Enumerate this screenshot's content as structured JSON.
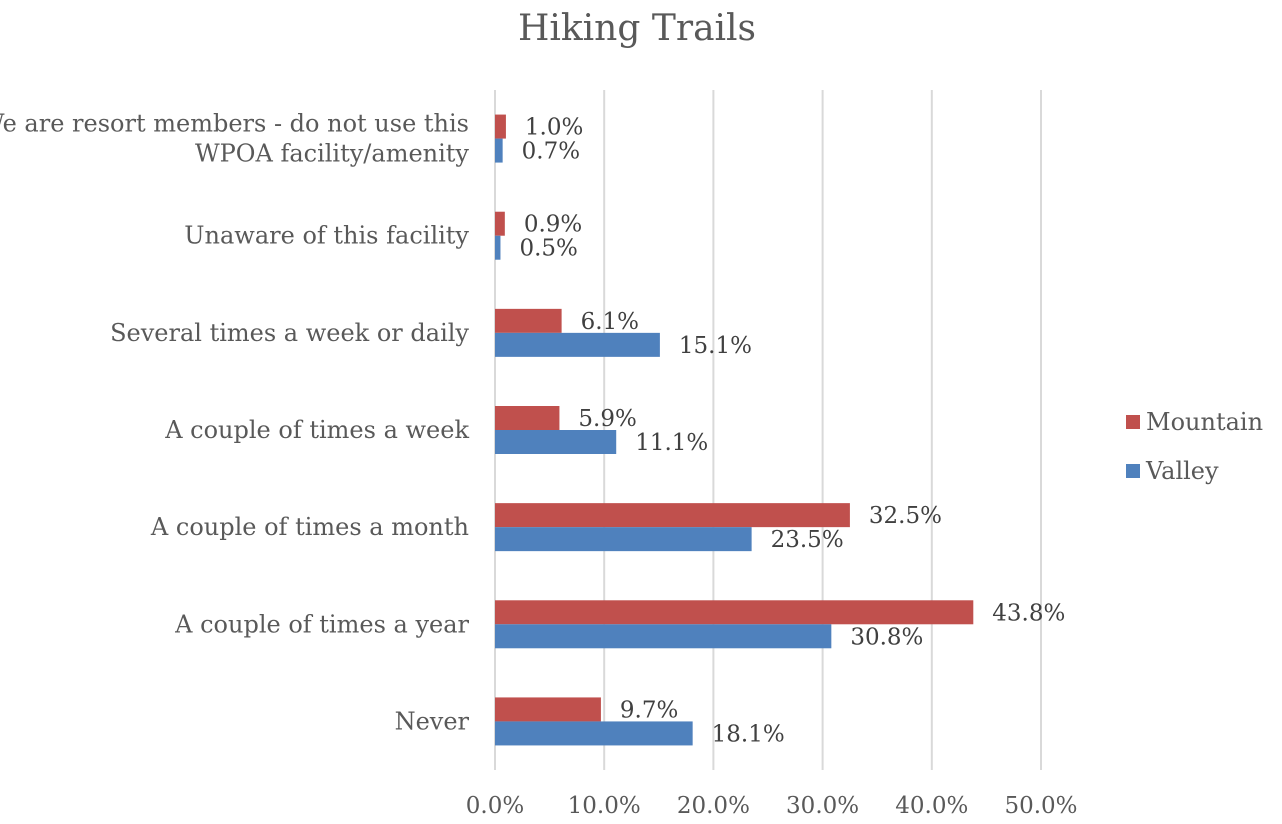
{
  "chart_data": {
    "type": "bar",
    "orientation": "horizontal",
    "title": "Hiking Trails",
    "xlabel": "",
    "ylabel": "",
    "xlim": [
      0,
      50
    ],
    "ticks": [
      "0.0%",
      "10.0%",
      "20.0%",
      "30.0%",
      "40.0%",
      "50.0%"
    ],
    "grid": true,
    "legend_position": "right",
    "categories": [
      [
        "We are resort members - do not use this",
        "WPOA facility/amenity"
      ],
      [
        "Unaware of this facility"
      ],
      [
        "Several times a week or daily"
      ],
      [
        "A couple of times a week"
      ],
      [
        "A couple of times a month"
      ],
      [
        "A couple of times a year"
      ],
      [
        "Never"
      ]
    ],
    "series": [
      {
        "name": "Mountain",
        "color": "#c0504d",
        "values": [
          1.0,
          0.9,
          6.1,
          5.9,
          32.5,
          43.8,
          9.7
        ],
        "labels": [
          "1.0%",
          "0.9%",
          "6.1%",
          "5.9%",
          "32.5%",
          "43.8%",
          "9.7%"
        ]
      },
      {
        "name": "Valley",
        "color": "#4f81bd",
        "values": [
          0.7,
          0.5,
          15.1,
          11.1,
          23.5,
          30.8,
          18.1
        ],
        "labels": [
          "0.7%",
          "0.5%",
          "15.1%",
          "11.1%",
          "23.5%",
          "30.8%",
          "18.1%"
        ]
      }
    ]
  }
}
